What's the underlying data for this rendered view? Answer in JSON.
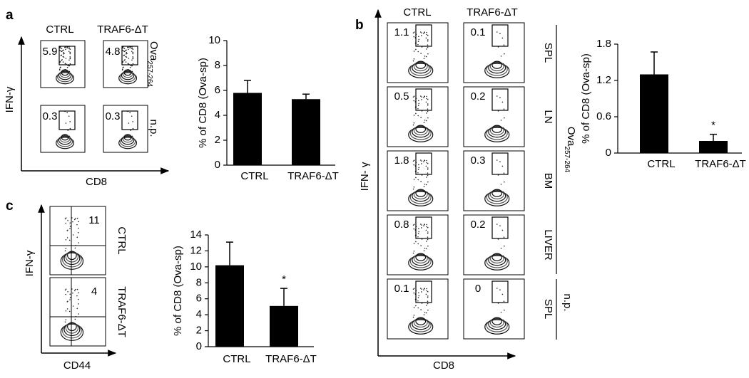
{
  "panel_labels": [
    "a",
    "b",
    "c"
  ],
  "flow_a": {
    "columns": [
      "CTRL",
      "TRAF6-ΔT"
    ],
    "row_labels": [
      {
        "text": "Ova",
        "sub": "257-264"
      },
      {
        "text": "n.p."
      }
    ],
    "gates": [
      [
        5.9,
        4.8
      ],
      [
        0.3,
        0.3
      ]
    ],
    "y_label": "IFN-γ",
    "x_label": "CD8"
  },
  "flow_b": {
    "columns": [
      "CTRL",
      "TRAF6-ΔT"
    ],
    "row_labels": [
      "SPL",
      "LN",
      "BM",
      "LIVER",
      "SPL"
    ],
    "group_labels": [
      {
        "text": "Ova",
        "sub": "257-264"
      },
      {
        "text": "n.p."
      }
    ],
    "gates": [
      [
        1.1,
        0.1
      ],
      [
        0.5,
        0.2
      ],
      [
        1.8,
        0.3
      ],
      [
        0.8,
        0.2
      ],
      [
        0.1,
        0
      ]
    ],
    "y_label": "IFN- γ",
    "x_label": "CD8"
  },
  "flow_c": {
    "row_labels": [
      "CTRL",
      "TRAF6-ΔT"
    ],
    "gates": [
      11,
      4
    ],
    "y_label": "IFN-γ",
    "x_label": "CD44"
  },
  "chart_data": [
    {
      "type": "bar",
      "y_label": "% of CD8 (Ova-sp)",
      "categories": [
        "CTRL",
        "TRAF6-ΔT"
      ],
      "values": [
        5.8,
        5.3
      ],
      "errors": [
        1.0,
        0.4
      ],
      "color": "#000000",
      "ylim": [
        0,
        10
      ],
      "yticks": [
        0,
        2,
        4,
        6,
        8,
        10
      ]
    },
    {
      "type": "bar",
      "y_label": "% of CD8 (Ova-sp)",
      "categories": [
        "CTRL",
        "TRAF6-ΔT"
      ],
      "values": [
        1.3,
        0.2
      ],
      "errors": [
        0.37,
        0.11
      ],
      "color": "#000000",
      "ylim": [
        0,
        1.8
      ],
      "yticks": [
        0,
        0.6,
        1.2,
        1.8
      ],
      "annotation": "*"
    },
    {
      "type": "bar",
      "y_label": "% of CD8 (Ova-sp)",
      "categories": [
        "CTRL",
        "TRAF6-ΔT"
      ],
      "values": [
        10.2,
        5.1
      ],
      "errors": [
        2.9,
        2.2
      ],
      "color": "#000000",
      "ylim": [
        0,
        14
      ],
      "yticks": [
        0,
        2,
        4,
        6,
        8,
        10,
        12,
        14
      ],
      "annotation": "*"
    }
  ]
}
